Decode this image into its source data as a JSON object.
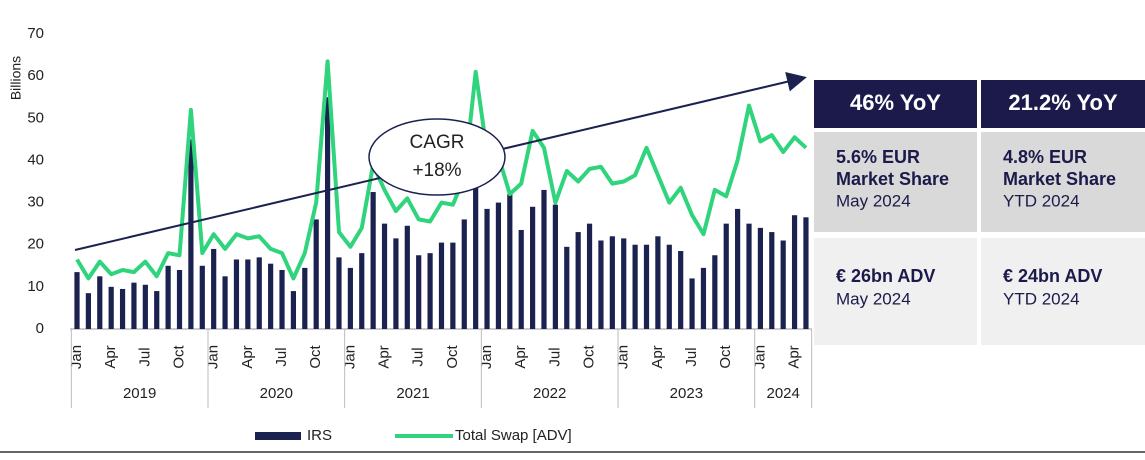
{
  "chart_data": {
    "type": "bar_line",
    "y_label": "Billions",
    "categories": [
      "Jan",
      null,
      null,
      "Apr",
      null,
      null,
      "Jul",
      null,
      null,
      "Oct",
      null,
      null,
      "Jan",
      null,
      null,
      "Apr",
      null,
      null,
      "Jul",
      null,
      null,
      "Oct",
      null,
      null,
      "Jan",
      null,
      null,
      "Apr",
      null,
      null,
      "Jul",
      null,
      null,
      "Oct",
      null,
      null,
      "Jan",
      null,
      null,
      "Apr",
      null,
      null,
      "Jul",
      null,
      null,
      "Oct",
      null,
      null,
      "Jan",
      null,
      null,
      "Apr",
      null,
      null,
      "Jul",
      null,
      null,
      "Oct",
      null,
      null,
      "Jan",
      null,
      null,
      "Apr",
      null
    ],
    "years": [
      "2019",
      "2020",
      "2021",
      "2022",
      "2023",
      "2024"
    ],
    "series": [
      {
        "name": "IRS",
        "color": "#1b2250",
        "kind": "bar",
        "values": [
          13.5,
          8.5,
          12.5,
          10,
          9.5,
          11,
          10.5,
          9,
          15,
          14,
          45,
          15,
          19,
          12.5,
          16.5,
          16.5,
          17,
          15.5,
          14,
          9,
          14.5,
          26,
          55,
          17,
          14.5,
          18,
          32.5,
          25,
          21.5,
          24.5,
          17.5,
          18,
          20.5,
          20.5,
          26,
          36,
          28.5,
          30,
          32,
          23.5,
          29,
          33,
          29.5,
          19.5,
          23,
          25,
          21,
          22,
          21.5,
          20,
          20,
          22,
          20,
          18.5,
          12,
          14.5,
          17.5,
          25,
          28.5,
          25,
          24,
          23,
          21,
          27,
          26.5
        ]
      },
      {
        "name": "Total Swap [ADV]",
        "color": "#2fd47c",
        "kind": "line",
        "values": [
          16.5,
          12,
          16,
          13,
          14,
          13.5,
          16,
          12.5,
          18,
          17.5,
          52,
          18,
          22.5,
          19,
          22.5,
          21.5,
          22,
          19,
          18,
          12,
          18,
          30,
          63.5,
          23,
          19.5,
          24,
          39,
          33,
          28,
          31,
          26,
          25.5,
          30,
          29.5,
          36,
          61,
          42,
          41,
          32,
          34.5,
          47,
          43,
          30,
          37.5,
          35,
          38,
          38.5,
          34.5,
          35,
          36.5,
          43,
          36.5,
          30,
          33.5,
          27,
          22.5,
          33,
          31.5,
          40,
          53,
          44.5,
          46,
          42,
          45.5,
          43
        ]
      }
    ],
    "ylim": [
      0,
      70
    ],
    "yticks": [
      0,
      10,
      20,
      30,
      40,
      50,
      60,
      70
    ],
    "annotation": [
      "CAGR",
      "+18%"
    ]
  },
  "panel": {
    "header": [
      "46% YoY",
      "21.2% YoY"
    ],
    "rows": [
      [
        {
          "bold": [
            "5.6% EUR",
            "Market Share"
          ],
          "sub": "May 2024"
        },
        {
          "bold": [
            "4.8% EUR",
            "Market Share"
          ],
          "sub": "YTD 2024"
        }
      ],
      [
        {
          "bold": [
            "€ 26bn ADV"
          ],
          "sub": "May 2024"
        },
        {
          "bold": [
            "€ 24bn ADV"
          ],
          "sub": "YTD 2024"
        }
      ]
    ]
  }
}
